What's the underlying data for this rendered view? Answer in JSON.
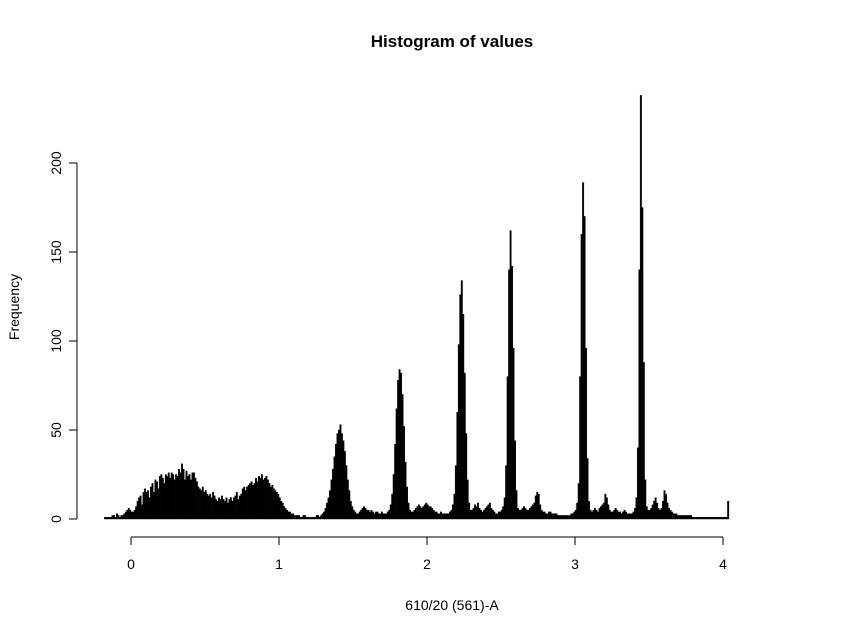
{
  "chart_data": {
    "type": "bar",
    "title": "Histogram of values",
    "xlabel": "610/20 (561)-A",
    "ylabel": "Frequency",
    "xlim": [
      -0.2,
      4.5
    ],
    "ylim": [
      0,
      240
    ],
    "x_ticks": [
      0,
      1,
      2,
      3,
      4
    ],
    "x_tick_labels": [
      "0",
      "1",
      "2",
      "3",
      "4"
    ],
    "y_ticks": [
      0,
      50,
      100,
      150,
      200
    ],
    "y_tick_labels": [
      "0",
      "50",
      "100",
      "150",
      "200"
    ],
    "bar_color": "#000000",
    "bin_width": 0.01,
    "bins_start": -0.18,
    "grid": false,
    "series": [
      {
        "name": "",
        "values": [
          1,
          1,
          1,
          1,
          1,
          2,
          2,
          1,
          3,
          2,
          1,
          2,
          2,
          3,
          4,
          5,
          6,
          5,
          4,
          4,
          5,
          7,
          10,
          12,
          13,
          8,
          15,
          17,
          15,
          16,
          12,
          18,
          20,
          15,
          22,
          21,
          17,
          24,
          25,
          23,
          20,
          25,
          24,
          26,
          23,
          26,
          25,
          22,
          25,
          24,
          28,
          26,
          31,
          28,
          22,
          27,
          24,
          25,
          22,
          26,
          26,
          23,
          21,
          18,
          17,
          16,
          18,
          15,
          16,
          14,
          13,
          14,
          12,
          15,
          13,
          11,
          10,
          12,
          11,
          13,
          11,
          10,
          12,
          9,
          11,
          12,
          10,
          12,
          13,
          15,
          11,
          13,
          14,
          17,
          18,
          16,
          18,
          19,
          20,
          21,
          19,
          20,
          23,
          21,
          24,
          23,
          25,
          22,
          23,
          24,
          22,
          20,
          18,
          19,
          17,
          16,
          15,
          14,
          12,
          10,
          9,
          7,
          6,
          5,
          4,
          4,
          3,
          3,
          2,
          2,
          2,
          2,
          1,
          1,
          2,
          2,
          1,
          1,
          1,
          1,
          1,
          1,
          1,
          2,
          2,
          1,
          2,
          3,
          4,
          6,
          9,
          12,
          16,
          22,
          28,
          35,
          42,
          48,
          50,
          53,
          48,
          44,
          38,
          30,
          22,
          16,
          10,
          7,
          5,
          4,
          3,
          3,
          4,
          5,
          6,
          7,
          6,
          5,
          5,
          4,
          5,
          4,
          3,
          4,
          4,
          3,
          3,
          4,
          3,
          3,
          3,
          4,
          5,
          8,
          14,
          25,
          42,
          62,
          78,
          84,
          82,
          70,
          52,
          32,
          18,
          9,
          5,
          4,
          4,
          5,
          6,
          7,
          8,
          7,
          6,
          7,
          8,
          9,
          8,
          7,
          7,
          6,
          5,
          4,
          4,
          3,
          3,
          4,
          3,
          3,
          3,
          3,
          3,
          4,
          5,
          8,
          14,
          30,
          60,
          98,
          126,
          134,
          115,
          82,
          48,
          22,
          9,
          5,
          5,
          6,
          8,
          7,
          9,
          6,
          5,
          4,
          5,
          6,
          7,
          8,
          9,
          6,
          5,
          4,
          3,
          3,
          4,
          4,
          5,
          7,
          12,
          30,
          80,
          140,
          162,
          142,
          96,
          44,
          16,
          6,
          5,
          5,
          6,
          7,
          6,
          5,
          5,
          6,
          7,
          8,
          9,
          13,
          15,
          14,
          8,
          5,
          4,
          4,
          3,
          3,
          4,
          4,
          3,
          3,
          3,
          3,
          2,
          2,
          2,
          2,
          2,
          2,
          2,
          2,
          2,
          3,
          3,
          4,
          5,
          9,
          20,
          80,
          160,
          189,
          170,
          96,
          34,
          10,
          5,
          4,
          5,
          6,
          5,
          4,
          6,
          7,
          8,
          9,
          14,
          12,
          8,
          5,
          4,
          4,
          5,
          6,
          5,
          4,
          4,
          3,
          4,
          5,
          4,
          3,
          3,
          3,
          3,
          4,
          6,
          12,
          40,
          140,
          238,
          175,
          88,
          22,
          7,
          5,
          5,
          6,
          8,
          10,
          12,
          9,
          6,
          5,
          6,
          10,
          16,
          14,
          9,
          6,
          5,
          4,
          3,
          3,
          3,
          2,
          2,
          2,
          2,
          2,
          2,
          2,
          2,
          2,
          2,
          1,
          1,
          1,
          1,
          1,
          1,
          1,
          1,
          1,
          1,
          1,
          1,
          1,
          1,
          1,
          1,
          1,
          1,
          1,
          1,
          1,
          1,
          1,
          1,
          10
        ]
      }
    ]
  }
}
